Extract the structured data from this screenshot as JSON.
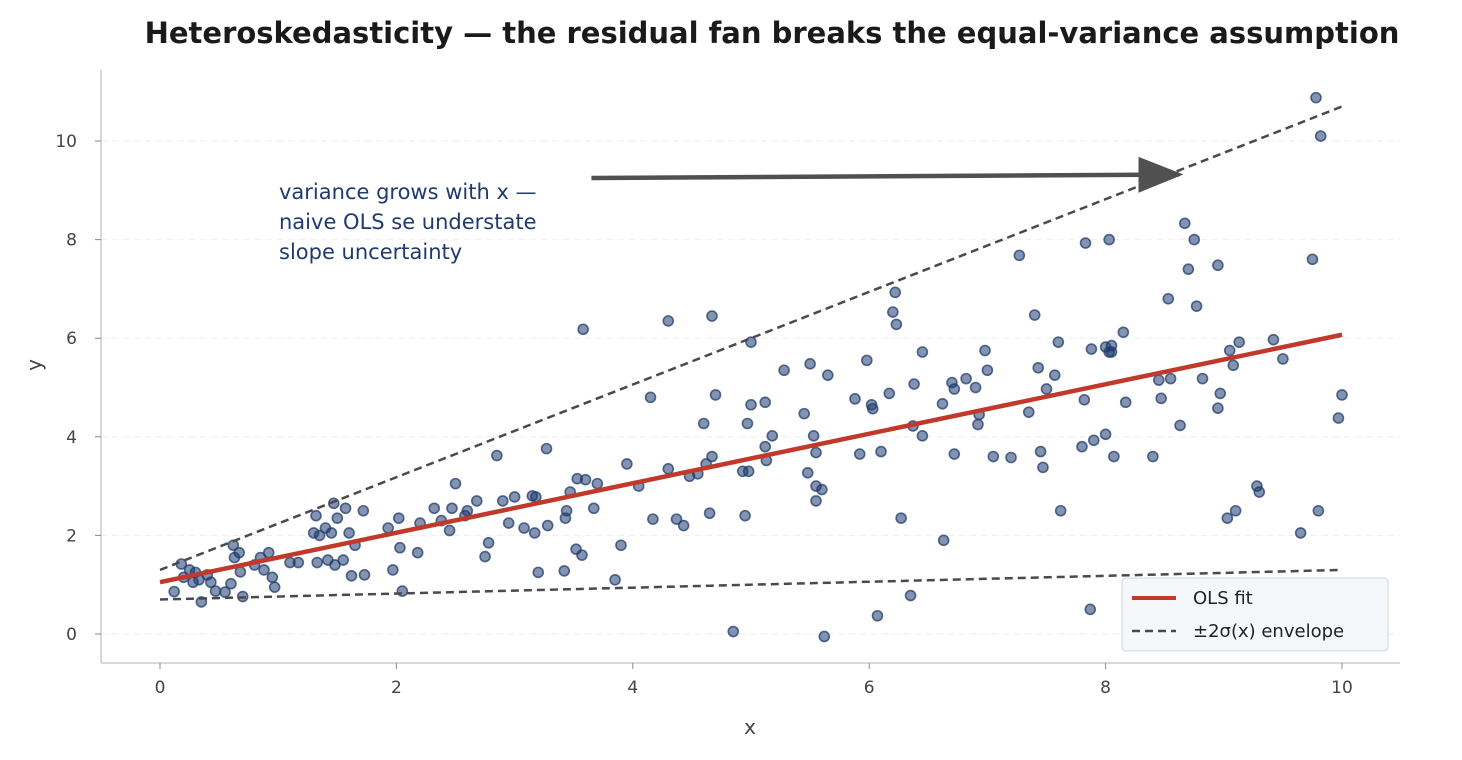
{
  "chart_data": {
    "type": "scatter",
    "title": "Heteroskedasticity — the residual fan breaks the equal-variance assumption",
    "xlabel": "x",
    "ylabel": "y",
    "xlim": [
      -0.5,
      10.5
    ],
    "ylim": [
      -0.6,
      11.4
    ],
    "xticks": [
      0,
      2,
      4,
      6,
      8,
      10
    ],
    "yticks": [
      0,
      2,
      4,
      6,
      8,
      10
    ],
    "grid": "horizontal dashed",
    "legend_position": "lower-right",
    "colors": {
      "points": "#1f3b6e",
      "fit": "#c0392b",
      "envelope": "#4a4a4a",
      "annotation_text": "#1f3b6e",
      "arrow": "#505050",
      "grid": "#eeeeee",
      "spine": "#cccccc",
      "legend_background": "#f5f7fa"
    },
    "series": [
      {
        "name": "OLS fit",
        "type": "line",
        "style": "solid",
        "points": [
          [
            0,
            1.05
          ],
          [
            10,
            6.07
          ]
        ]
      },
      {
        "name": "±2σ(x) envelope",
        "type": "line",
        "style": "dashed",
        "upper": [
          [
            0,
            1.3
          ],
          [
            10,
            10.7
          ]
        ],
        "lower": [
          [
            0,
            0.7
          ],
          [
            10,
            1.3
          ]
        ]
      },
      {
        "type": "scatter",
        "points": [
          [
            0.12,
            0.86
          ],
          [
            0.18,
            1.42
          ],
          [
            0.2,
            1.15
          ],
          [
            0.25,
            1.3
          ],
          [
            0.28,
            1.05
          ],
          [
            0.3,
            1.25
          ],
          [
            0.33,
            1.1
          ],
          [
            0.35,
            0.65
          ],
          [
            0.4,
            1.2
          ],
          [
            0.43,
            1.05
          ],
          [
            0.47,
            0.87
          ],
          [
            0.55,
            0.85
          ],
          [
            0.6,
            1.02
          ],
          [
            0.62,
            1.8
          ],
          [
            0.63,
            1.55
          ],
          [
            0.67,
            1.65
          ],
          [
            0.68,
            1.26
          ],
          [
            0.7,
            0.76
          ],
          [
            0.8,
            1.4
          ],
          [
            0.85,
            1.55
          ],
          [
            0.88,
            1.3
          ],
          [
            0.92,
            1.65
          ],
          [
            0.95,
            1.15
          ],
          [
            0.97,
            0.95
          ],
          [
            1.1,
            1.45
          ],
          [
            1.17,
            1.45
          ],
          [
            1.3,
            2.05
          ],
          [
            1.32,
            2.4
          ],
          [
            1.33,
            1.45
          ],
          [
            1.35,
            2.0
          ],
          [
            1.4,
            2.15
          ],
          [
            1.42,
            1.5
          ],
          [
            1.45,
            2.05
          ],
          [
            1.47,
            2.65
          ],
          [
            1.48,
            1.4
          ],
          [
            1.5,
            2.35
          ],
          [
            1.55,
            1.5
          ],
          [
            1.57,
            2.55
          ],
          [
            1.6,
            2.05
          ],
          [
            1.62,
            1.18
          ],
          [
            1.65,
            1.8
          ],
          [
            1.72,
            2.5
          ],
          [
            1.73,
            1.2
          ],
          [
            1.93,
            2.15
          ],
          [
            1.97,
            1.3
          ],
          [
            2.02,
            2.35
          ],
          [
            2.03,
            1.75
          ],
          [
            2.05,
            0.87
          ],
          [
            2.18,
            1.65
          ],
          [
            2.2,
            2.25
          ],
          [
            2.32,
            2.55
          ],
          [
            2.38,
            2.3
          ],
          [
            2.45,
            2.1
          ],
          [
            2.47,
            2.55
          ],
          [
            2.5,
            3.05
          ],
          [
            2.58,
            2.4
          ],
          [
            2.6,
            2.5
          ],
          [
            2.68,
            2.7
          ],
          [
            2.75,
            1.57
          ],
          [
            2.78,
            1.85
          ],
          [
            2.85,
            3.62
          ],
          [
            2.9,
            2.7
          ],
          [
            2.95,
            2.25
          ],
          [
            3.0,
            2.78
          ],
          [
            3.08,
            2.15
          ],
          [
            3.15,
            2.8
          ],
          [
            3.17,
            2.05
          ],
          [
            3.18,
            2.78
          ],
          [
            3.2,
            1.25
          ],
          [
            3.27,
            3.76
          ],
          [
            3.28,
            2.2
          ],
          [
            3.42,
            1.28
          ],
          [
            3.43,
            2.35
          ],
          [
            3.44,
            2.5
          ],
          [
            3.47,
            2.88
          ],
          [
            3.52,
            1.72
          ],
          [
            3.53,
            3.15
          ],
          [
            3.57,
            1.6
          ],
          [
            3.58,
            6.18
          ],
          [
            3.6,
            3.13
          ],
          [
            3.67,
            2.55
          ],
          [
            3.7,
            3.05
          ],
          [
            3.85,
            1.1
          ],
          [
            3.9,
            1.8
          ],
          [
            3.95,
            3.45
          ],
          [
            4.05,
            3.0
          ],
          [
            4.15,
            4.8
          ],
          [
            4.17,
            2.33
          ],
          [
            4.3,
            3.35
          ],
          [
            4.3,
            6.35
          ],
          [
            4.37,
            2.33
          ],
          [
            4.43,
            2.2
          ],
          [
            4.48,
            3.2
          ],
          [
            4.55,
            3.25
          ],
          [
            4.6,
            4.27
          ],
          [
            4.62,
            3.45
          ],
          [
            4.65,
            2.45
          ],
          [
            4.67,
            3.6
          ],
          [
            4.67,
            6.45
          ],
          [
            4.7,
            4.85
          ],
          [
            4.85,
            0.05
          ],
          [
            4.93,
            3.3
          ],
          [
            4.95,
            2.4
          ],
          [
            4.97,
            4.27
          ],
          [
            4.98,
            3.3
          ],
          [
            5.0,
            5.92
          ],
          [
            5.0,
            4.65
          ],
          [
            5.12,
            4.7
          ],
          [
            5.12,
            3.8
          ],
          [
            5.13,
            3.52
          ],
          [
            5.18,
            4.02
          ],
          [
            5.28,
            5.35
          ],
          [
            5.45,
            4.47
          ],
          [
            5.48,
            3.27
          ],
          [
            5.5,
            5.48
          ],
          [
            5.53,
            4.02
          ],
          [
            5.55,
            2.7
          ],
          [
            5.55,
            3.0
          ],
          [
            5.55,
            3.68
          ],
          [
            5.6,
            2.93
          ],
          [
            5.62,
            -0.05
          ],
          [
            5.65,
            5.25
          ],
          [
            5.88,
            4.77
          ],
          [
            5.92,
            3.65
          ],
          [
            5.98,
            5.55
          ],
          [
            6.02,
            4.65
          ],
          [
            6.03,
            4.57
          ],
          [
            6.07,
            0.37
          ],
          [
            6.1,
            3.7
          ],
          [
            6.17,
            4.88
          ],
          [
            6.2,
            6.53
          ],
          [
            6.22,
            6.93
          ],
          [
            6.23,
            6.28
          ],
          [
            6.27,
            2.35
          ],
          [
            6.35,
            0.78
          ],
          [
            6.37,
            4.22
          ],
          [
            6.38,
            5.07
          ],
          [
            6.45,
            4.02
          ],
          [
            6.45,
            5.72
          ],
          [
            6.62,
            4.67
          ],
          [
            6.63,
            1.9
          ],
          [
            6.7,
            5.1
          ],
          [
            6.72,
            4.97
          ],
          [
            6.72,
            3.65
          ],
          [
            6.82,
            5.18
          ],
          [
            6.9,
            5.0
          ],
          [
            6.92,
            4.25
          ],
          [
            6.93,
            4.45
          ],
          [
            6.98,
            5.75
          ],
          [
            7.0,
            5.35
          ],
          [
            7.05,
            3.6
          ],
          [
            7.2,
            3.58
          ],
          [
            7.27,
            7.68
          ],
          [
            7.35,
            4.5
          ],
          [
            7.4,
            6.47
          ],
          [
            7.43,
            5.4
          ],
          [
            7.45,
            3.7
          ],
          [
            7.47,
            3.38
          ],
          [
            7.5,
            4.97
          ],
          [
            7.57,
            5.25
          ],
          [
            7.6,
            5.92
          ],
          [
            7.62,
            2.5
          ],
          [
            7.8,
            3.8
          ],
          [
            7.82,
            4.75
          ],
          [
            7.83,
            7.93
          ],
          [
            7.87,
            0.5
          ],
          [
            7.88,
            5.78
          ],
          [
            7.9,
            3.93
          ],
          [
            8.0,
            4.05
          ],
          [
            8.0,
            5.82
          ],
          [
            8.03,
            5.72
          ],
          [
            8.03,
            8.0
          ],
          [
            8.05,
            5.85
          ],
          [
            8.05,
            5.72
          ],
          [
            8.07,
            3.6
          ],
          [
            8.15,
            6.12
          ],
          [
            8.17,
            4.7
          ],
          [
            8.4,
            3.6
          ],
          [
            8.45,
            5.15
          ],
          [
            8.47,
            4.78
          ],
          [
            8.53,
            6.8
          ],
          [
            8.55,
            5.18
          ],
          [
            8.63,
            4.23
          ],
          [
            8.67,
            8.33
          ],
          [
            8.7,
            7.4
          ],
          [
            8.75,
            8.0
          ],
          [
            8.77,
            6.65
          ],
          [
            8.82,
            5.18
          ],
          [
            8.95,
            7.48
          ],
          [
            8.95,
            4.58
          ],
          [
            8.97,
            4.88
          ],
          [
            9.03,
            2.35
          ],
          [
            9.05,
            5.75
          ],
          [
            9.08,
            5.45
          ],
          [
            9.1,
            2.5
          ],
          [
            9.13,
            5.92
          ],
          [
            9.28,
            3.0
          ],
          [
            9.3,
            2.88
          ],
          [
            9.42,
            5.97
          ],
          [
            9.5,
            5.58
          ],
          [
            9.65,
            2.05
          ],
          [
            9.75,
            7.6
          ],
          [
            9.78,
            10.88
          ],
          [
            9.8,
            2.5
          ],
          [
            9.82,
            10.1
          ],
          [
            9.97,
            4.38
          ],
          [
            10.0,
            4.85
          ]
        ]
      }
    ],
    "annotation": {
      "lines": [
        "variance grows with x —",
        "naive OLS se understate",
        "slope uncertainty"
      ],
      "arrow_from": [
        3.65,
        9.25
      ],
      "arrow_to": [
        8.62,
        9.32
      ]
    }
  }
}
